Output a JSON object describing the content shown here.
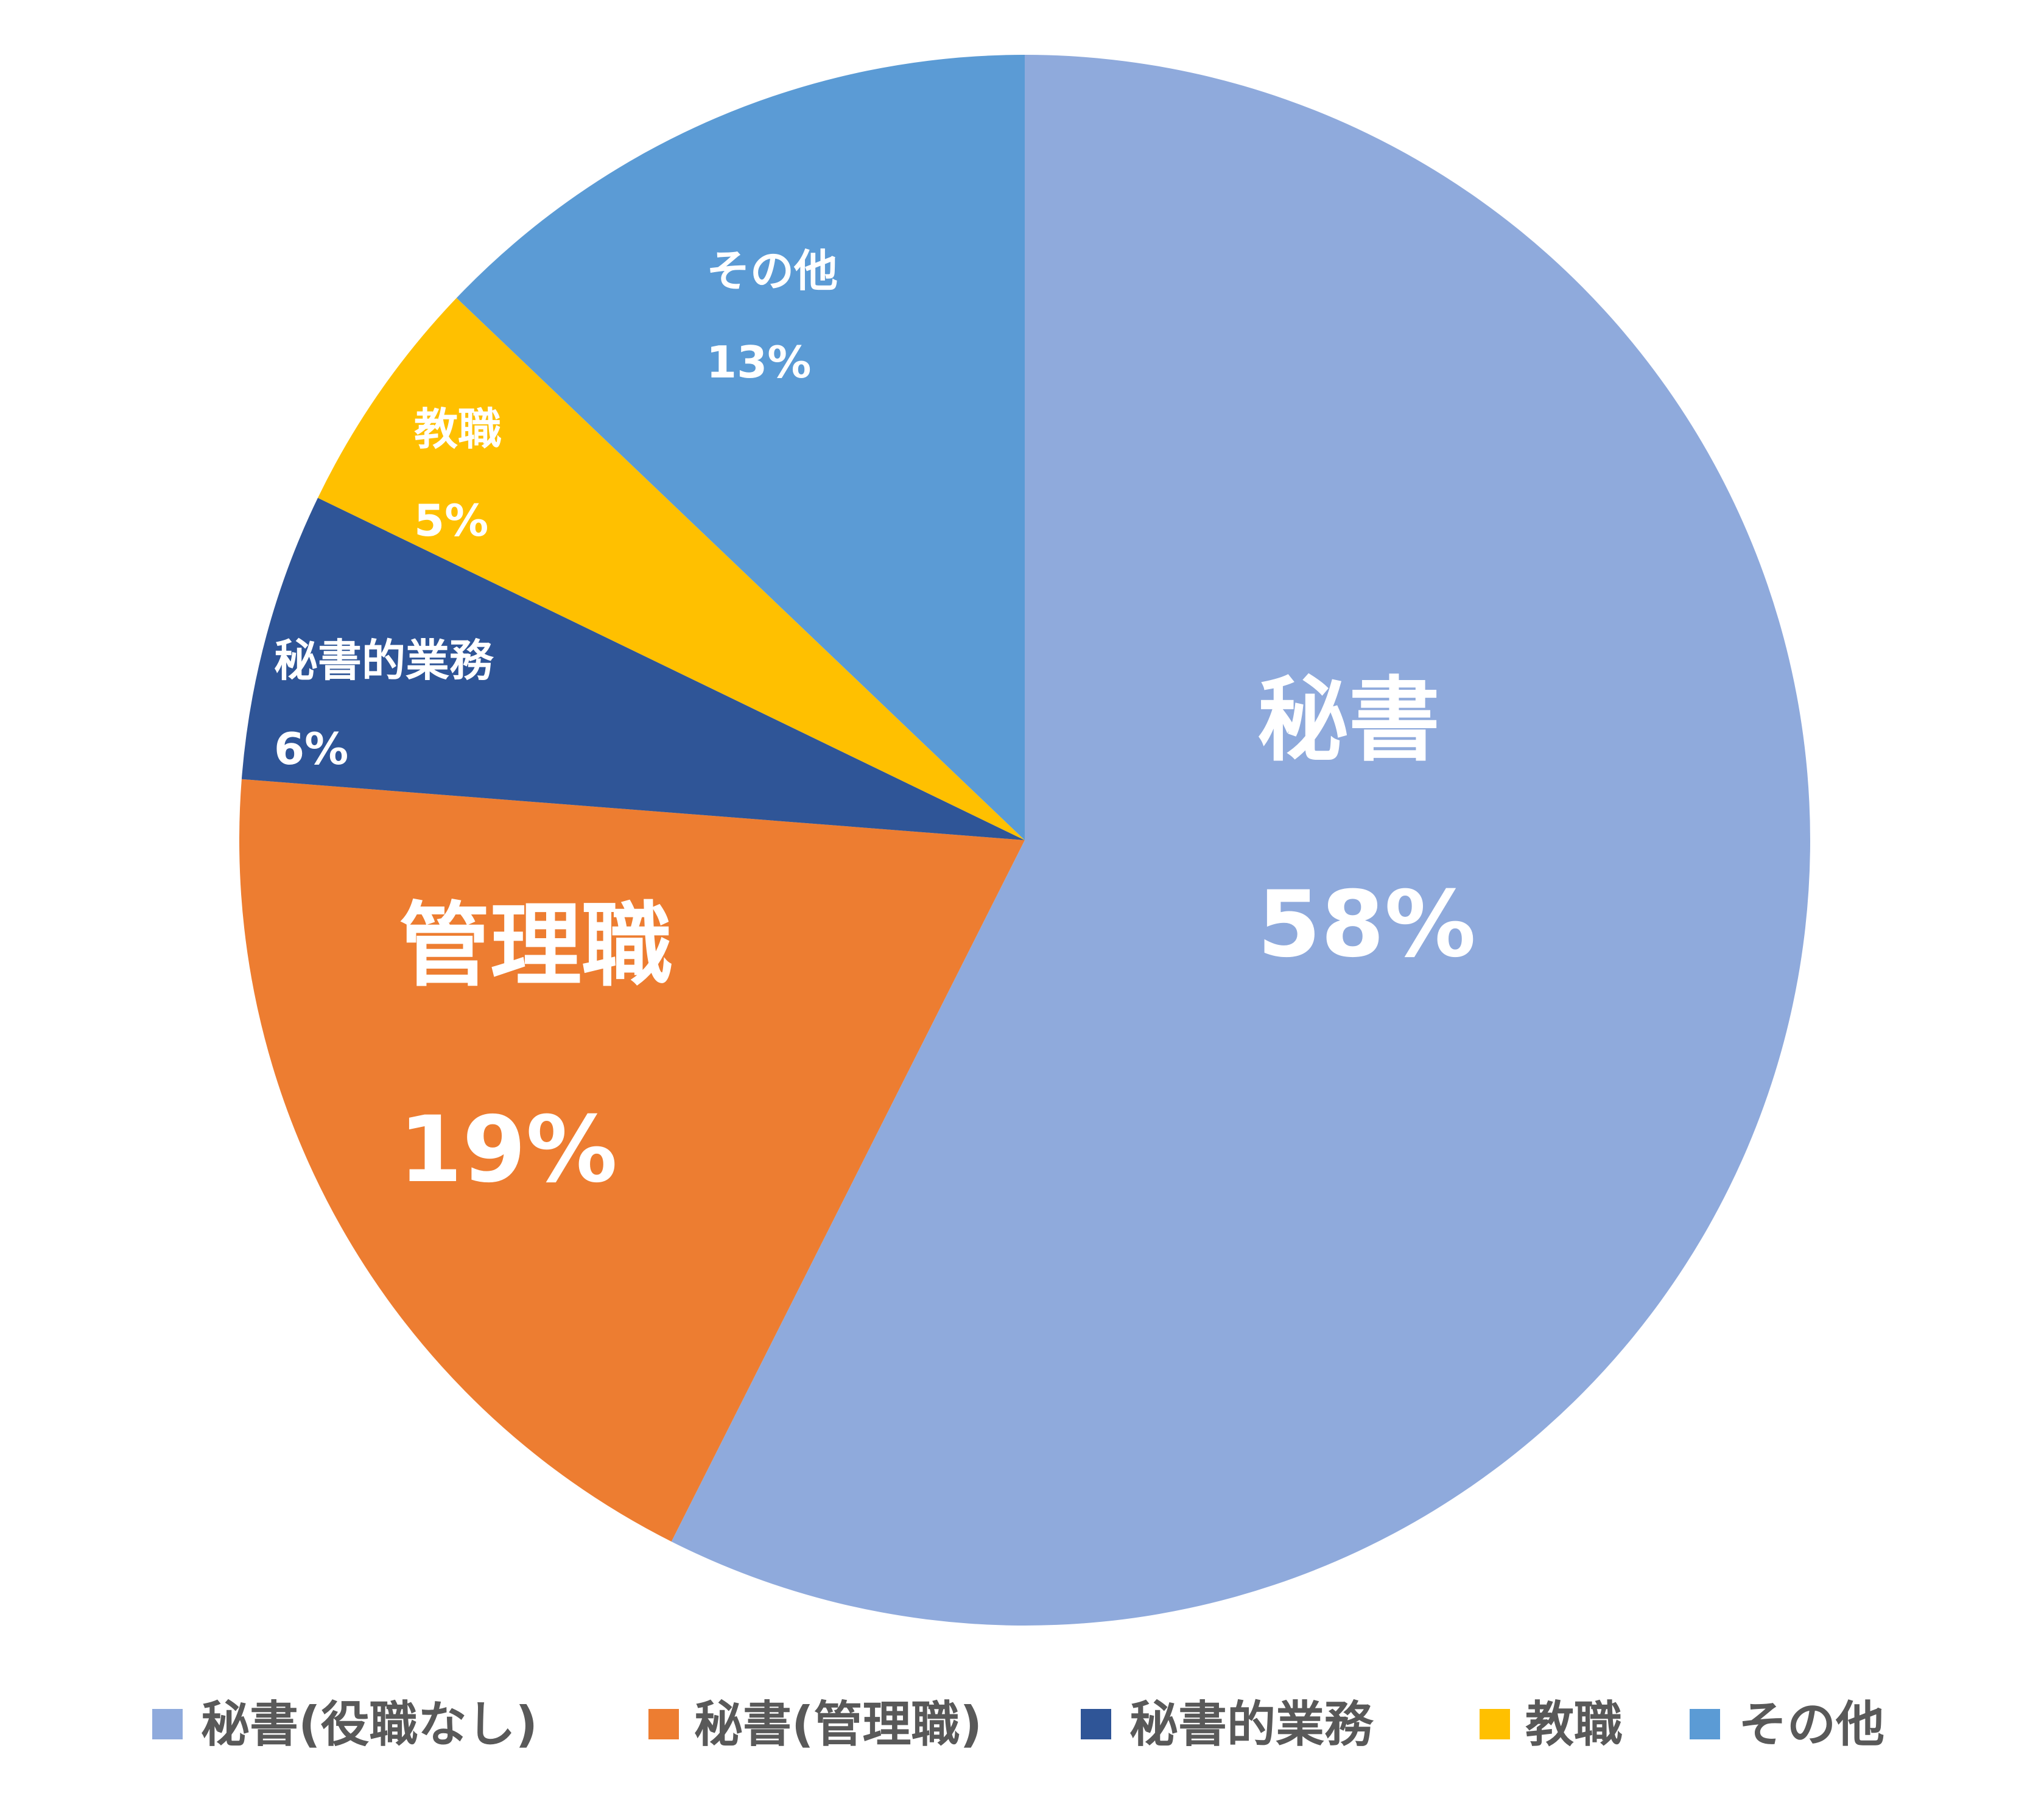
{
  "chart_data": {
    "type": "pie",
    "start_angle": "12 o'clock, clockwise",
    "slices": [
      {
        "legend": "秘書(役職なし)",
        "label": "秘書",
        "value": 58,
        "value_label": "58%",
        "color": "#8FAADC"
      },
      {
        "legend": "秘書(管理職)",
        "label": "管理職",
        "value": 19,
        "value_label": "19%",
        "color": "#ED7D31"
      },
      {
        "legend": "秘書的業務",
        "label": "秘書的業務",
        "value": 6,
        "value_label": "6%",
        "color": "#2F5597"
      },
      {
        "legend": "教職",
        "label": "教職",
        "value": 5,
        "value_label": "5%",
        "color": "#FFC000"
      },
      {
        "legend": "その他",
        "label": "その他",
        "value": 13,
        "value_label": "13%",
        "color": "#5B9BD5"
      }
    ],
    "legend_position": "bottom"
  }
}
